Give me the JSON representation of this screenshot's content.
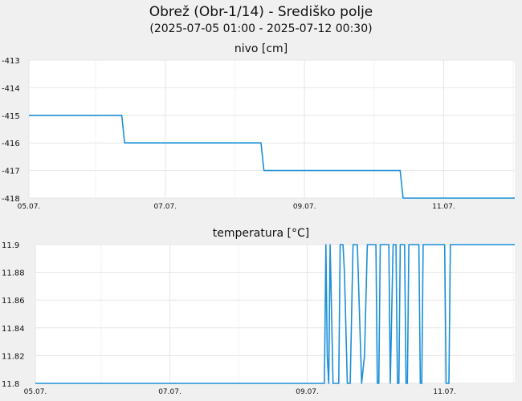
{
  "title": "Obrež (Obr-1/14) - Središko polje",
  "subtitle": "(2025-07-05 01:00 - 2025-07-12 00:30)",
  "colors": {
    "line": "#1a8fd8",
    "grid": "#e6e6e6",
    "panel": "#ffffff",
    "page": "#f0f0f0"
  },
  "chart_data": [
    {
      "type": "line",
      "title": "nivo [cm]",
      "xlabel": "",
      "ylabel": "",
      "x_tick_labels": [
        "05.07.",
        "07.07.",
        "09.07.",
        "11.07."
      ],
      "y_ticks": [
        "-413",
        "-414",
        "-415",
        "-416",
        "-417",
        "-418"
      ],
      "ylim": [
        -418,
        -413
      ],
      "xlim": [
        "2025-07-05 01:00",
        "2025-07-12 00:30"
      ],
      "grid": true,
      "series": [
        {
          "x": [
            "2025-07-05 01:00",
            "2025-07-06 09:00",
            "2025-07-06 10:00",
            "2025-07-08 09:00",
            "2025-07-08 10:00",
            "2025-07-10 09:00",
            "2025-07-10 10:00",
            "2025-07-12 00:30"
          ],
          "values": [
            -415,
            -415,
            -416,
            -416,
            -417,
            -417,
            -418,
            -418
          ]
        }
      ]
    },
    {
      "type": "line",
      "title": "temperatura [°C]",
      "xlabel": "",
      "ylabel": "",
      "x_tick_labels": [
        "05.07.",
        "07.07.",
        "09.07.",
        "11.07."
      ],
      "y_ticks": [
        "11.9",
        "11.88",
        "11.86",
        "11.84",
        "11.82",
        "11.8"
      ],
      "ylim": [
        11.8,
        11.9
      ],
      "xlim": [
        "2025-07-05 01:00",
        "2025-07-12 00:30"
      ],
      "grid": true,
      "series": [
        {
          "x": [
            "2025-07-05 01:00",
            "2025-07-09 06:00",
            "2025-07-09 06:30",
            "2025-07-09 07:00",
            "2025-07-09 07:30",
            "2025-07-09 08:00",
            "2025-07-09 09:00",
            "2025-07-09 10:00",
            "2025-07-09 11:00",
            "2025-07-09 11:30",
            "2025-07-09 12:00",
            "2025-07-09 12:30",
            "2025-07-09 13:00",
            "2025-07-09 14:00",
            "2025-07-09 15:00",
            "2025-07-09 16:00",
            "2025-07-09 17:00",
            "2025-07-09 17:30",
            "2025-07-09 19:00",
            "2025-07-09 20:00",
            "2025-07-09 21:00",
            "2025-07-10 00:00",
            "2025-07-10 00:30",
            "2025-07-10 01:00",
            "2025-07-10 01:30",
            "2025-07-10 04:30",
            "2025-07-10 05:00",
            "2025-07-10 06:00",
            "2025-07-10 07:00",
            "2025-07-10 07:30",
            "2025-07-10 08:00",
            "2025-07-10 08:30",
            "2025-07-10 10:00",
            "2025-07-10 10:30",
            "2025-07-10 11:00",
            "2025-07-10 11:30",
            "2025-07-10 12:00",
            "2025-07-10 15:00",
            "2025-07-10 15:30",
            "2025-07-10 16:00",
            "2025-07-10 16:30",
            "2025-07-10 17:00",
            "2025-07-11 00:00",
            "2025-07-11 00:30",
            "2025-07-11 01:00",
            "2025-07-11 01:30",
            "2025-07-11 02:00",
            "2025-07-11 02:30",
            "2025-07-12 00:30"
          ],
          "values": [
            11.8,
            11.8,
            11.9,
            11.82,
            11.8,
            11.9,
            11.8,
            11.8,
            11.8,
            11.9,
            11.9,
            11.9,
            11.88,
            11.8,
            11.8,
            11.9,
            11.9,
            11.9,
            11.8,
            11.82,
            11.9,
            11.9,
            11.8,
            11.8,
            11.9,
            11.9,
            11.8,
            11.9,
            11.9,
            11.8,
            11.8,
            11.9,
            11.9,
            11.8,
            11.8,
            11.9,
            11.9,
            11.9,
            11.8,
            11.8,
            11.9,
            11.9,
            11.9,
            11.8,
            11.8,
            11.8,
            11.9,
            11.9,
            11.9
          ]
        }
      ]
    }
  ]
}
